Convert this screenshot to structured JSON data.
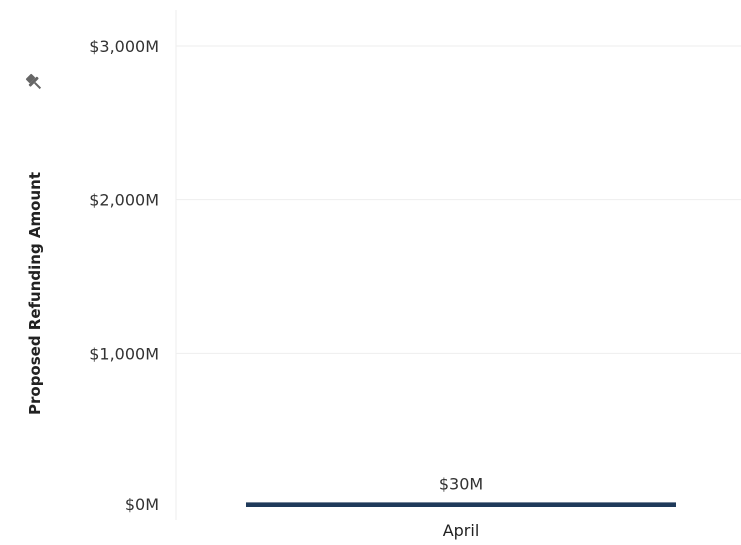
{
  "chart_data": {
    "type": "bar",
    "categories": [
      "April"
    ],
    "values": [
      30
    ],
    "data_labels": [
      "$30M"
    ],
    "ylabel": "Proposed Refunding Amount",
    "ylim": [
      0,
      3000
    ],
    "yticks": [
      0,
      1000,
      2000,
      3000
    ],
    "ytick_labels": [
      "$0M",
      "$1,000M",
      "$2,000M",
      "$3,000M"
    ],
    "grid": true,
    "colors": {
      "bar": "#1f3a5a",
      "grid": "#eeeeee",
      "pin_icon": "#666666"
    },
    "icons": {
      "axis_pin": "pin-icon"
    }
  }
}
